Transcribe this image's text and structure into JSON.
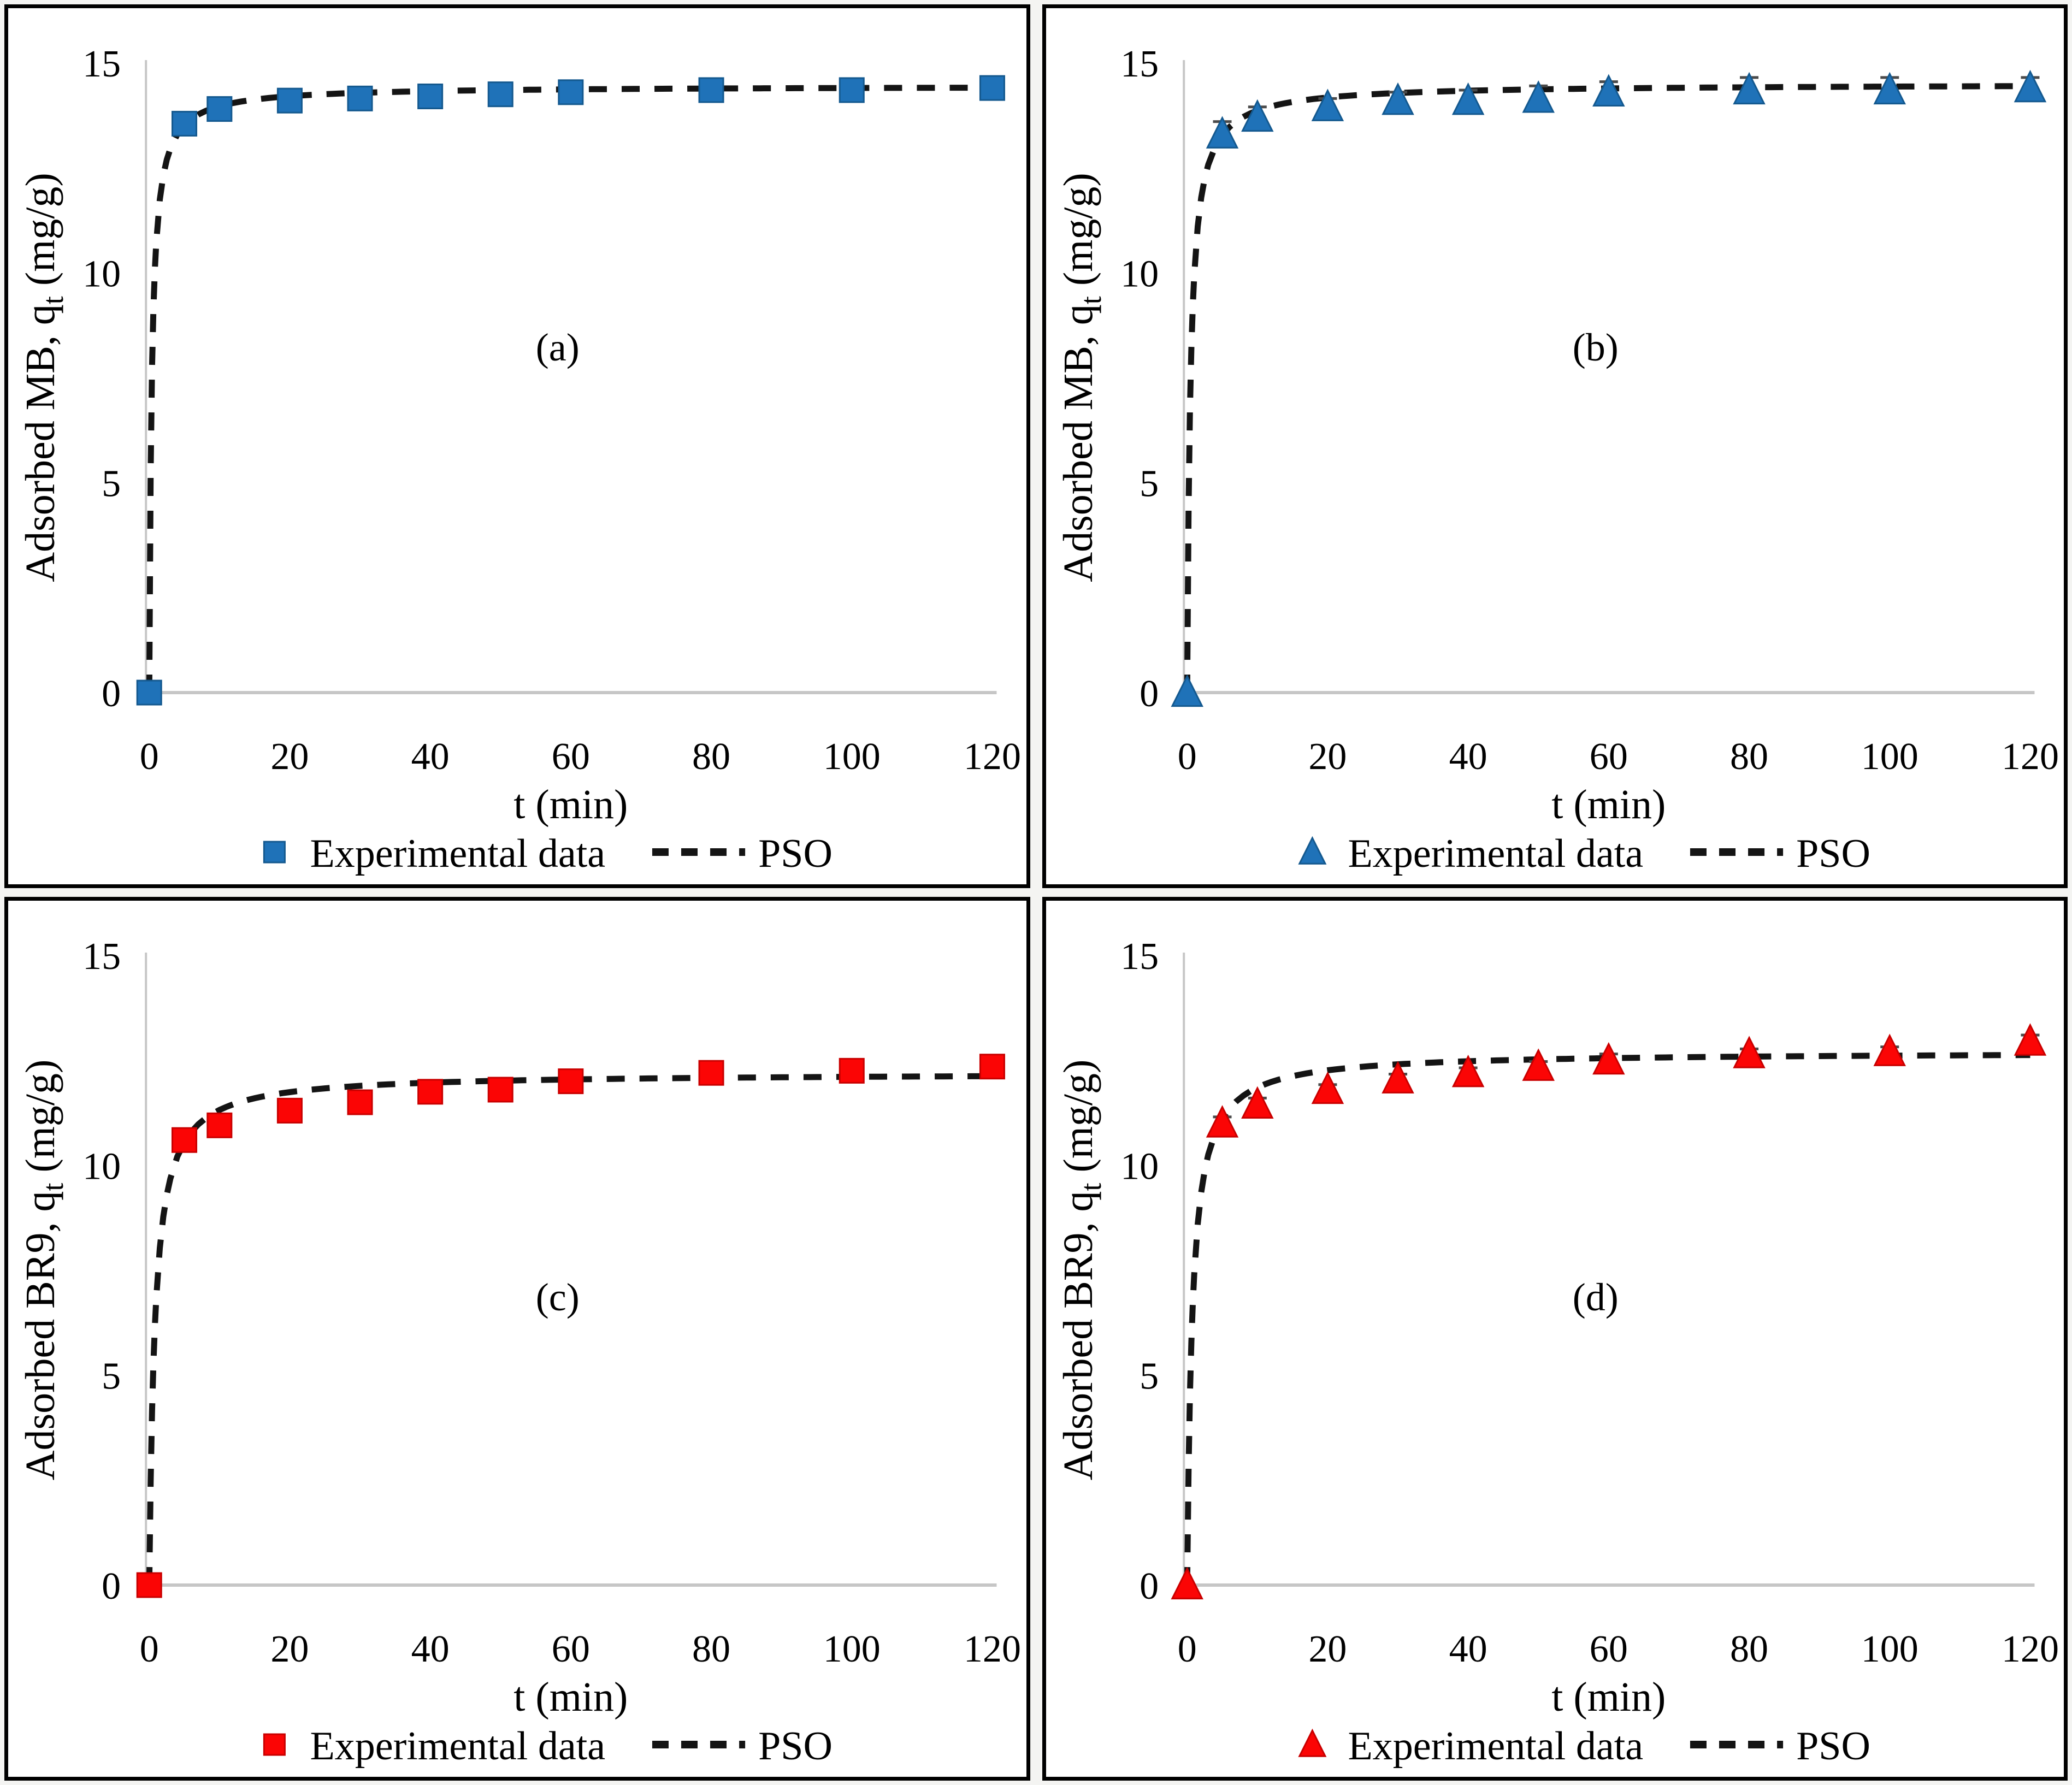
{
  "figure": {
    "background": "#ffffff",
    "outer_background": "#f4f4f2",
    "panel_border_color": "#000000"
  },
  "colors": {
    "axis_line": "#c6c6c6",
    "pso_line": "#141414",
    "error_bar": "#4a4a4a",
    "blue_marker": "#1f72b8",
    "blue_marker_edge": "#14598f",
    "red_marker": "#fb0505",
    "red_marker_edge": "#c90000"
  },
  "chart_data": [
    {
      "id": "a",
      "type": "scatter",
      "panel_label": "(a)",
      "xlabel": "t (min)",
      "ylabel_prefix": "Adsorbed MB, q",
      "ylabel_sub": "t",
      "ylabel_suffix": " (mg/g)",
      "xlim": [
        0,
        120
      ],
      "ylim": [
        0,
        15
      ],
      "xticks": [
        0,
        20,
        40,
        60,
        80,
        100,
        120
      ],
      "yticks": [
        0,
        5,
        10,
        15
      ],
      "marker": {
        "shape": "square",
        "color": "#1f72b8",
        "edge": "#14598f"
      },
      "series": [
        {
          "name": "Experimental data",
          "x": [
            0,
            5,
            10,
            20,
            30,
            40,
            50,
            60,
            80,
            100,
            120
          ],
          "y": [
            0,
            13.55,
            13.9,
            14.1,
            14.15,
            14.2,
            14.25,
            14.3,
            14.35,
            14.35,
            14.4
          ],
          "yerr": null
        },
        {
          "name": "PSO",
          "style": "dashed",
          "model": "pseudo-second-order",
          "qe": 14.45,
          "k": 0.2
        }
      ],
      "legend": {
        "experimental_label": "Experimental data",
        "model_label": "PSO"
      }
    },
    {
      "id": "b",
      "type": "scatter",
      "panel_label": "(b)",
      "xlabel": "t (min)",
      "ylabel_prefix": "Adsorbed MB, q",
      "ylabel_sub": "t",
      "ylabel_suffix": " (mg/g)",
      "xlim": [
        0,
        120
      ],
      "ylim": [
        0,
        15
      ],
      "xticks": [
        0,
        20,
        40,
        60,
        80,
        100,
        120
      ],
      "yticks": [
        0,
        5,
        10,
        15
      ],
      "marker": {
        "shape": "triangle",
        "color": "#1f72b8",
        "edge": "#14598f"
      },
      "series": [
        {
          "name": "Experimental data",
          "x": [
            0,
            5,
            10,
            20,
            30,
            40,
            50,
            60,
            80,
            100,
            120
          ],
          "y": [
            0,
            13.3,
            13.7,
            13.95,
            14.1,
            14.1,
            14.15,
            14.3,
            14.35,
            14.35,
            14.4
          ],
          "yerr": [
            0,
            0.3,
            0.25,
            0.2,
            0.2,
            0.25,
            0.3,
            0.25,
            0.3,
            0.3,
            0.25
          ]
        },
        {
          "name": "PSO",
          "style": "dashed",
          "model": "pseudo-second-order",
          "qe": 14.5,
          "k": 0.15
        }
      ],
      "legend": {
        "experimental_label": "Experimental data",
        "model_label": "PSO"
      }
    },
    {
      "id": "c",
      "type": "scatter",
      "panel_label": "(c)",
      "xlabel": "t (min)",
      "ylabel_prefix": "Adsorbed BR9, q",
      "ylabel_sub": "t",
      "ylabel_suffix": " (mg/g)",
      "xlim": [
        0,
        120
      ],
      "ylim": [
        0,
        15
      ],
      "xticks": [
        0,
        20,
        40,
        60,
        80,
        100,
        120
      ],
      "yticks": [
        0,
        5,
        10,
        15
      ],
      "marker": {
        "shape": "square",
        "color": "#fb0505",
        "edge": "#c90000"
      },
      "series": [
        {
          "name": "Experimental data",
          "x": [
            0,
            5,
            10,
            20,
            30,
            40,
            50,
            60,
            80,
            100,
            120
          ],
          "y": [
            0,
            10.6,
            10.95,
            11.3,
            11.5,
            11.75,
            11.8,
            12.0,
            12.2,
            12.25,
            12.35
          ],
          "yerr": null
        },
        {
          "name": "PSO",
          "style": "dashed",
          "model": "pseudo-second-order",
          "qe": 12.2,
          "k": 0.105
        }
      ],
      "legend": {
        "experimental_label": "Experimental data",
        "model_label": "PSO"
      }
    },
    {
      "id": "d",
      "type": "scatter",
      "panel_label": "(d)",
      "xlabel": "t (min)",
      "ylabel_prefix": "Adsorbed BR9, q",
      "ylabel_sub": "t",
      "ylabel_suffix": " (mg/g)",
      "xlim": [
        0,
        120
      ],
      "ylim": [
        0,
        15
      ],
      "xticks": [
        0,
        20,
        40,
        60,
        80,
        100,
        120
      ],
      "yticks": [
        0,
        5,
        10,
        15
      ],
      "marker": {
        "shape": "triangle",
        "color": "#fb0505",
        "edge": "#c90000"
      },
      "series": [
        {
          "name": "Experimental data",
          "x": [
            0,
            5,
            10,
            20,
            30,
            40,
            50,
            60,
            80,
            100,
            120
          ],
          "y": [
            0,
            11.0,
            11.45,
            11.8,
            12.05,
            12.2,
            12.35,
            12.5,
            12.65,
            12.7,
            12.95
          ],
          "yerr": [
            0,
            0.15,
            0.15,
            0.12,
            0.12,
            0.12,
            0.12,
            0.15,
            0.12,
            0.12,
            0.15
          ]
        },
        {
          "name": "PSO",
          "style": "dashed",
          "model": "pseudo-second-order",
          "qe": 12.7,
          "k": 0.11
        }
      ],
      "legend": {
        "experimental_label": "Experimental data",
        "model_label": "PSO"
      }
    }
  ]
}
